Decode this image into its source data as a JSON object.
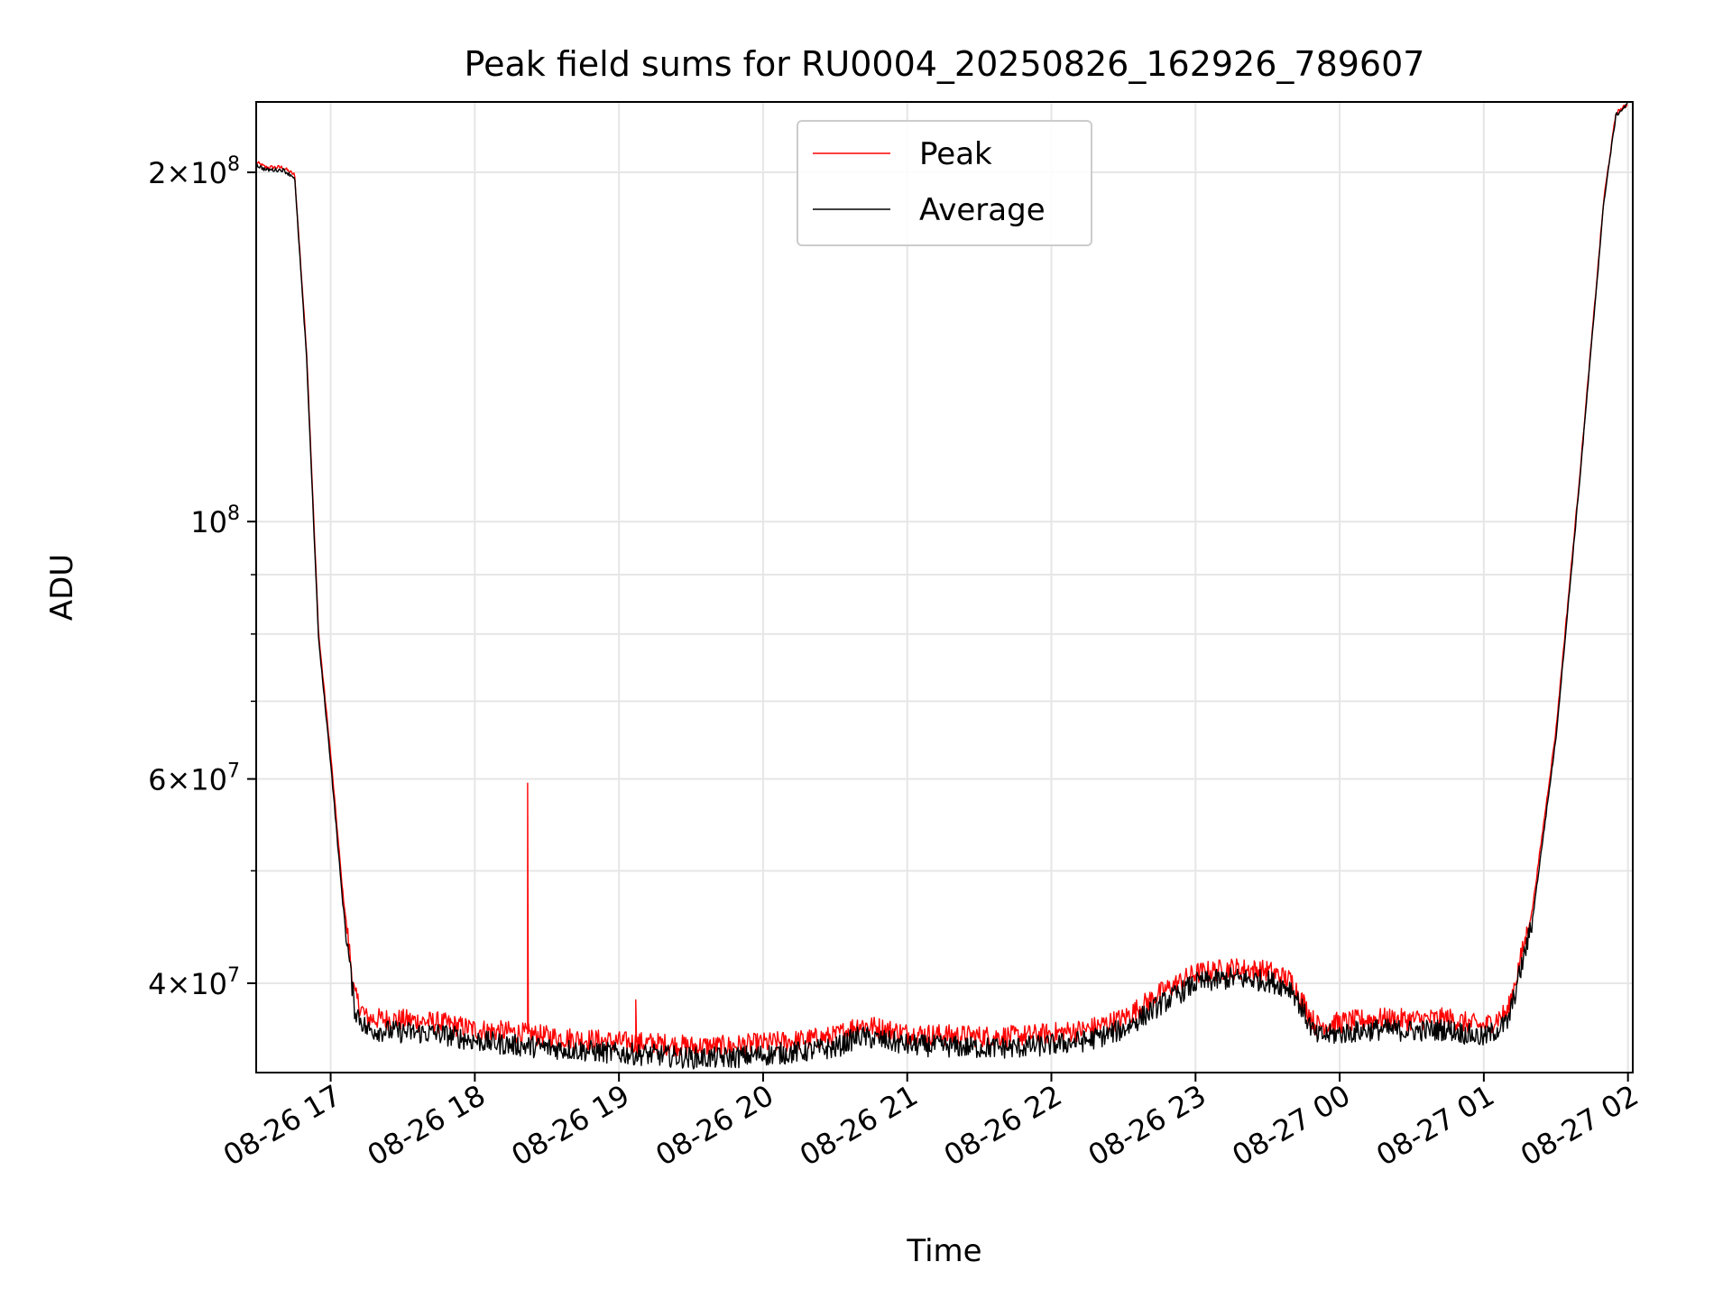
{
  "chart_data": {
    "type": "line",
    "title": "Peak field sums for RU0004_20250826_162926_789607",
    "xlabel": "Time",
    "ylabel": "ADU",
    "y_scale": "log",
    "grid": true,
    "legend_position": "top-center",
    "xlim": [
      "2025-08-26 16:29",
      "2025-08-27 02:02"
    ],
    "ylim": [
      33500000,
      230000000
    ],
    "x_ticks": [
      {
        "value": "2025-08-26 17:00",
        "label": "08-26 17"
      },
      {
        "value": "2025-08-26 18:00",
        "label": "08-26 18"
      },
      {
        "value": "2025-08-26 19:00",
        "label": "08-26 19"
      },
      {
        "value": "2025-08-26 20:00",
        "label": "08-26 20"
      },
      {
        "value": "2025-08-26 21:00",
        "label": "08-26 21"
      },
      {
        "value": "2025-08-26 22:00",
        "label": "08-26 22"
      },
      {
        "value": "2025-08-26 23:00",
        "label": "08-26 23"
      },
      {
        "value": "2025-08-27 00:00",
        "label": "08-27 00"
      },
      {
        "value": "2025-08-27 01:00",
        "label": "08-27 01"
      },
      {
        "value": "2025-08-27 02:00",
        "label": "08-27 02"
      }
    ],
    "y_major_ticks": [
      {
        "value": 40000000,
        "mantissa": "4",
        "exponent": "7"
      },
      {
        "value": 60000000,
        "mantissa": "6",
        "exponent": "7"
      },
      {
        "value": 100000000,
        "mantissa": "",
        "exponent": "8"
      },
      {
        "value": 200000000,
        "mantissa": "2",
        "exponent": "8"
      }
    ],
    "y_minor_ticks": [
      50000000,
      70000000,
      80000000,
      90000000
    ],
    "series": [
      {
        "name": "Peak",
        "color": "#ff0000",
        "points": [
          [
            "2025-08-26 16:29",
            204000000
          ],
          [
            "2025-08-26 16:33",
            202000000
          ],
          [
            "2025-08-26 16:40",
            202000000
          ],
          [
            "2025-08-26 16:45",
            199000000
          ],
          [
            "2025-08-26 16:50",
            140000000
          ],
          [
            "2025-08-26 16:55",
            80000000
          ],
          [
            "2025-08-26 17:00",
            63000000
          ],
          [
            "2025-08-26 17:05",
            48000000
          ],
          [
            "2025-08-26 17:10",
            39000000
          ],
          [
            "2025-08-26 17:15",
            37300000
          ],
          [
            "2025-08-26 17:30",
            37200000
          ],
          [
            "2025-08-26 17:45",
            37000000
          ],
          [
            "2025-08-26 18:00",
            36500000
          ],
          [
            "2025-08-26 18:15",
            36300000
          ],
          [
            "2025-08-26 18:30",
            36000000
          ],
          [
            "2025-08-26 18:45",
            35800000
          ],
          [
            "2025-08-26 19:00",
            35600000
          ],
          [
            "2025-08-26 19:15",
            35500000
          ],
          [
            "2025-08-26 19:30",
            35300000
          ],
          [
            "2025-08-26 19:45",
            35300000
          ],
          [
            "2025-08-26 20:00",
            35500000
          ],
          [
            "2025-08-26 20:15",
            35700000
          ],
          [
            "2025-08-26 20:30",
            36000000
          ],
          [
            "2025-08-26 20:40",
            36900000
          ],
          [
            "2025-08-26 21:00",
            36200000
          ],
          [
            "2025-08-26 21:15",
            36100000
          ],
          [
            "2025-08-26 21:30",
            36000000
          ],
          [
            "2025-08-26 21:45",
            36000000
          ],
          [
            "2025-08-26 22:00",
            36200000
          ],
          [
            "2025-08-26 22:15",
            36500000
          ],
          [
            "2025-08-26 22:30",
            37300000
          ],
          [
            "2025-08-26 22:45",
            39200000
          ],
          [
            "2025-08-26 23:00",
            40800000
          ],
          [
            "2025-08-26 23:15",
            41200000
          ],
          [
            "2025-08-26 23:30",
            41000000
          ],
          [
            "2025-08-26 23:40",
            40200000
          ],
          [
            "2025-08-26 23:50",
            36800000
          ],
          [
            "2025-08-27 00:00",
            37000000
          ],
          [
            "2025-08-27 00:15",
            37300000
          ],
          [
            "2025-08-27 00:30",
            37200000
          ],
          [
            "2025-08-27 00:45",
            37300000
          ],
          [
            "2025-08-27 01:00",
            36700000
          ],
          [
            "2025-08-27 01:10",
            37800000
          ],
          [
            "2025-08-27 01:20",
            46000000
          ],
          [
            "2025-08-27 01:30",
            66000000
          ],
          [
            "2025-08-27 01:40",
            110000000
          ],
          [
            "2025-08-27 01:50",
            190000000
          ],
          [
            "2025-08-27 01:55",
            225000000
          ],
          [
            "2025-08-27 02:00",
            229000000
          ]
        ],
        "spikes": [
          [
            "2025-08-26 18:22",
            59500000
          ],
          [
            "2025-08-26 19:07",
            38700000
          ]
        ]
      },
      {
        "name": "Average",
        "color": "#000000",
        "points": [
          [
            "2025-08-26 16:29",
            203000000
          ],
          [
            "2025-08-26 16:33",
            201000000
          ],
          [
            "2025-08-26 16:40",
            201000000
          ],
          [
            "2025-08-26 16:45",
            198000000
          ],
          [
            "2025-08-26 16:50",
            138000000
          ],
          [
            "2025-08-26 16:55",
            79000000
          ],
          [
            "2025-08-26 17:00",
            62000000
          ],
          [
            "2025-08-26 17:05",
            47000000
          ],
          [
            "2025-08-26 17:10",
            38000000
          ],
          [
            "2025-08-26 17:15",
            36500000
          ],
          [
            "2025-08-26 17:30",
            36300000
          ],
          [
            "2025-08-26 17:45",
            36200000
          ],
          [
            "2025-08-26 18:00",
            35700000
          ],
          [
            "2025-08-26 18:15",
            35400000
          ],
          [
            "2025-08-26 18:30",
            35200000
          ],
          [
            "2025-08-26 18:45",
            35000000
          ],
          [
            "2025-08-26 19:00",
            34800000
          ],
          [
            "2025-08-26 19:15",
            34700000
          ],
          [
            "2025-08-26 19:30",
            34500000
          ],
          [
            "2025-08-26 19:45",
            34500000
          ],
          [
            "2025-08-26 20:00",
            34700000
          ],
          [
            "2025-08-26 20:15",
            34900000
          ],
          [
            "2025-08-26 20:30",
            35200000
          ],
          [
            "2025-08-26 20:40",
            36000000
          ],
          [
            "2025-08-26 21:00",
            35400000
          ],
          [
            "2025-08-26 21:15",
            35300000
          ],
          [
            "2025-08-26 21:30",
            35200000
          ],
          [
            "2025-08-26 21:45",
            35200000
          ],
          [
            "2025-08-26 22:00",
            35400000
          ],
          [
            "2025-08-26 22:15",
            35700000
          ],
          [
            "2025-08-26 22:30",
            36500000
          ],
          [
            "2025-08-26 22:45",
            38300000
          ],
          [
            "2025-08-26 23:00",
            40000000
          ],
          [
            "2025-08-26 23:15",
            40400000
          ],
          [
            "2025-08-26 23:30",
            40200000
          ],
          [
            "2025-08-26 23:40",
            39600000
          ],
          [
            "2025-08-26 23:50",
            36000000
          ],
          [
            "2025-08-27 00:00",
            36200000
          ],
          [
            "2025-08-27 00:15",
            36500000
          ],
          [
            "2025-08-27 00:30",
            36400000
          ],
          [
            "2025-08-27 00:45",
            36500000
          ],
          [
            "2025-08-27 01:00",
            35900000
          ],
          [
            "2025-08-27 01:10",
            37000000
          ],
          [
            "2025-08-27 01:20",
            45000000
          ],
          [
            "2025-08-27 01:30",
            65000000
          ],
          [
            "2025-08-27 01:40",
            109000000
          ],
          [
            "2025-08-27 01:50",
            189000000
          ],
          [
            "2025-08-27 01:55",
            224000000
          ],
          [
            "2025-08-27 02:00",
            229000000
          ]
        ]
      }
    ]
  }
}
